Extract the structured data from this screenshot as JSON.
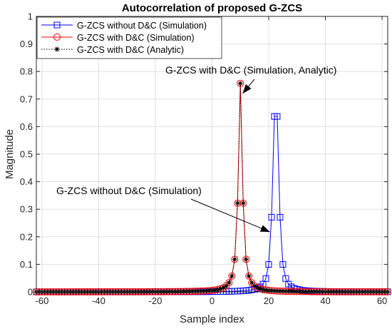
{
  "chart_data": {
    "type": "line",
    "title": "Autocorrelation of proposed G-ZCS",
    "xlabel": "Sample index",
    "ylabel": "Magnitude",
    "xlim": [
      -62,
      62
    ],
    "ylim": [
      0,
      1
    ],
    "xticks": [
      "-60",
      "-40",
      "-20",
      "0",
      "20",
      "40",
      "60"
    ],
    "yticks": [
      "0",
      "0.1",
      "0.2",
      "0.3",
      "0.4",
      "0.5",
      "0.6",
      "0.7",
      "0.8",
      "0.9",
      "1"
    ],
    "grid": true,
    "legend_position": "top-left",
    "peak_values": {
      "without_dc": 0.637,
      "with_dc": 0.757
    },
    "series": [
      {
        "name": "G-ZCS without D&C  (Simulation)",
        "color": "#0000ff",
        "line": "solid",
        "marker": "square",
        "center": 22.5,
        "peak": 0.637
      },
      {
        "name": "G-ZCS with D&C (Simulation)",
        "color": "#ff0000",
        "line": "solid",
        "marker": "circle",
        "center": 10,
        "peak": 0.757
      },
      {
        "name": "G-ZCS with D&C (Analytic)",
        "color": "#000000",
        "line": "dotted",
        "marker": "asterisk",
        "center": 10,
        "peak": 0.757
      }
    ],
    "annotations": [
      {
        "text": "G-ZCS with D&C  (Simulation, Analytic)",
        "arrow_to": [
          10.8,
          0.72
        ]
      },
      {
        "text": "G-ZCS without D&C  (Simulation)",
        "arrow_to": [
          21.2,
          0.21
        ]
      }
    ]
  }
}
